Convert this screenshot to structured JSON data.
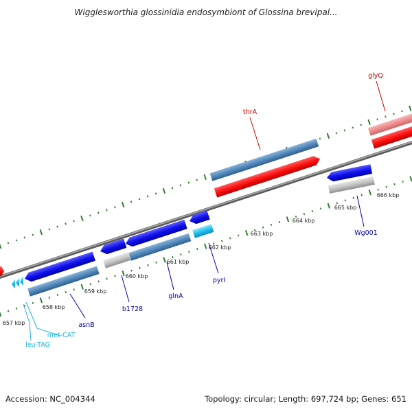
{
  "header": {
    "title": "Wigglesworthia glossinidia endosymbiont of Glossina brevipal..."
  },
  "footer": {
    "accession": "Accession: NC_004344",
    "summary": "Topology: circular; Length: 697,724 bp; Genes: 651"
  },
  "colors": {
    "backbone": "#8a8a8a",
    "tick": "#2f7d2f",
    "forward_gene": "#ff0000",
    "forward_label": "#cc0000",
    "reverse_gene": "#0000ee",
    "reverse_label": "#0000aa",
    "cds_bar": "#4f86b8",
    "rna_gene": "#22c0f0",
    "rna_label": "#22b4d8",
    "gray_bar": "#c4c4c4",
    "pink_gene": "#f08f8f"
  },
  "ruler": {
    "labels": [
      "657 kbp",
      "658 kbp",
      "659 kbp",
      "660 kbp",
      "661 kbp",
      "662 kbp",
      "663 kbp",
      "664 kbp",
      "665 kbp",
      "666 kbp"
    ]
  },
  "genes": {
    "forward": [
      {
        "label": "thrA"
      },
      {
        "label": "glyQ"
      }
    ],
    "reverse": [
      {
        "label": "asnB"
      },
      {
        "label": "b1728"
      },
      {
        "label": "glnA"
      },
      {
        "label": "pyrI"
      },
      {
        "label": "Wg001"
      }
    ],
    "rna": [
      {
        "label": "met-CAT"
      },
      {
        "label": "leu-TAG"
      }
    ]
  }
}
